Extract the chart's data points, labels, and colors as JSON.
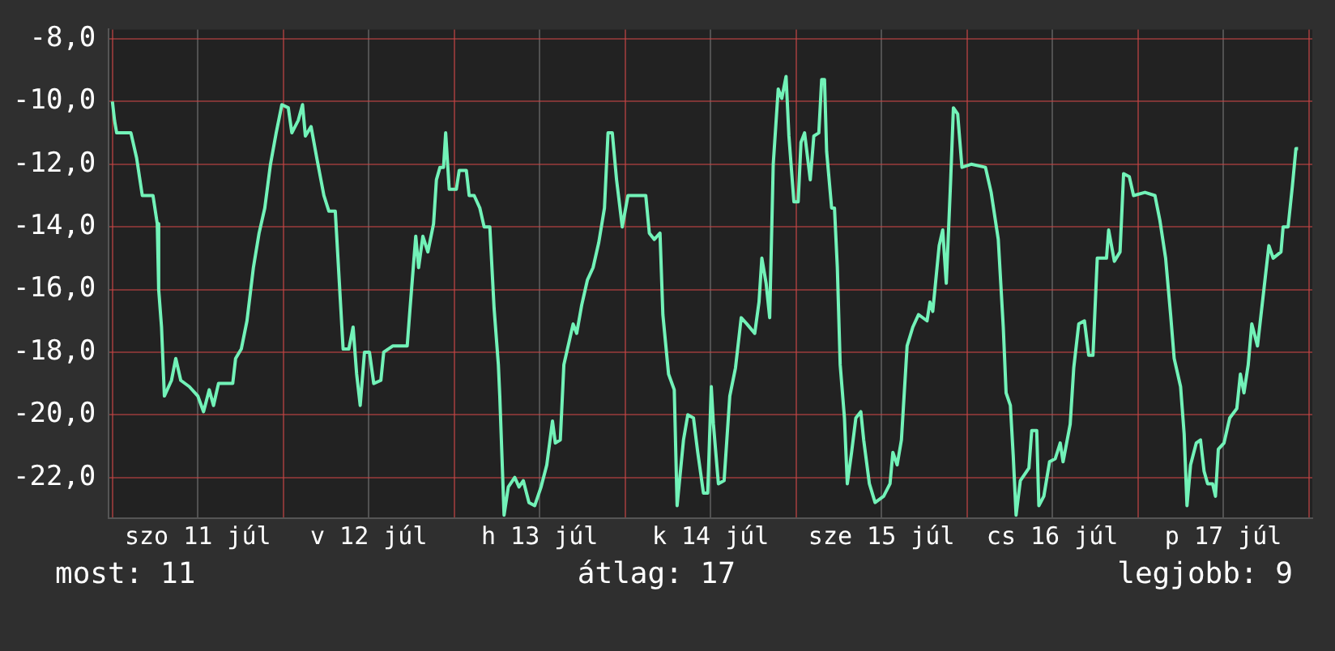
{
  "chart_data": {
    "type": "line",
    "color": "#72f2b8",
    "grid": true,
    "marker": "none",
    "line_style": "solid",
    "legend": false,
    "xlim": [
      "--07-10T23:30",
      "--07-18T00:30"
    ],
    "ylim": [
      -23.3,
      -7.7
    ],
    "xticks": [
      {
        "value": "--07-11T00:00",
        "label": null
      },
      {
        "value": "--07-11T12:00",
        "label": "szo 11 júl"
      },
      {
        "value": "--07-12T00:00",
        "label": null
      },
      {
        "value": "--07-12T12:00",
        "label": "v 12 júl"
      },
      {
        "value": "--07-13T00:00",
        "label": null
      },
      {
        "value": "--07-13T12:00",
        "label": "h 13 júl"
      },
      {
        "value": "--07-14T00:00",
        "label": null
      },
      {
        "value": "--07-14T12:00",
        "label": "k 14 júl"
      },
      {
        "value": "--07-15T00:00",
        "label": null
      },
      {
        "value": "--07-15T12:00",
        "label": "sze 15 júl"
      },
      {
        "value": "--07-16T00:00",
        "label": null
      },
      {
        "value": "--07-16T12:00",
        "label": "cs 16 júl"
      },
      {
        "value": "--07-17T00:00",
        "label": null
      },
      {
        "value": "--07-17T12:00",
        "label": "p 17 júl"
      },
      {
        "value": "--07-18T00:00",
        "label": null
      }
    ],
    "yticks": [
      {
        "value": -8,
        "label": "-8,0"
      },
      {
        "value": -10,
        "label": "-10,0"
      },
      {
        "value": -12,
        "label": "-12,0"
      },
      {
        "value": -14,
        "label": "-14,0"
      },
      {
        "value": -16,
        "label": "-16,0"
      },
      {
        "value": -18,
        "label": "-18,0"
      },
      {
        "value": -20,
        "label": "-20,0"
      },
      {
        "value": -22,
        "label": "-22,0"
      }
    ],
    "x": [
      "--07-11T00:00",
      "--07-11T00:18",
      "--07-11T00:36",
      "--07-11T02:36",
      "--07-11T03:24",
      "--07-11T04:12",
      "--07-11T05:42",
      "--07-11T06:18",
      "--07-11T06:30",
      "--07-11T06:54",
      "--07-11T07:18",
      "--07-11T08:18",
      "--07-11T08:54",
      "--07-11T09:36",
      "--07-11T10:48",
      "--07-11T12:00",
      "--07-11T12:48",
      "--07-11T13:36",
      "--07-11T14:12",
      "--07-11T14:54",
      "--07-11T16:54",
      "--07-11T17:18",
      "--07-11T18:06",
      "--07-11T18:54",
      "--07-11T19:48",
      "--07-11T20:36",
      "--07-11T21:24",
      "--07-11T22:12",
      "--07-11T23:00",
      "--07-11T23:48",
      "--07-12T00:42",
      "--07-12T01:12",
      "--07-12T02:06",
      "--07-12T02:42",
      "--07-12T03:06",
      "--07-12T03:54",
      "--07-12T04:42",
      "--07-12T05:42",
      "--07-12T06:24",
      "--07-12T07:18",
      "--07-12T08:00",
      "--07-12T08:24",
      "--07-12T09:12",
      "--07-12T09:48",
      "--07-12T10:18",
      "--07-12T10:48",
      "--07-12T11:24",
      "--07-12T12:06",
      "--07-12T12:42",
      "--07-12T13:42",
      "--07-12T14:06",
      "--07-12T15:24",
      "--07-12T17:24",
      "--07-12T17:48",
      "--07-12T18:36",
      "--07-12T19:00",
      "--07-12T19:36",
      "--07-12T20:18",
      "--07-12T21:06",
      "--07-12T21:30",
      "--07-12T22:00",
      "--07-12T22:30",
      "--07-12T22:48",
      "--07-12T23:18",
      "--07-13T00:18",
      "--07-13T00:42",
      "--07-13T01:42",
      "--07-13T02:06",
      "--07-13T02:48",
      "--07-13T03:36",
      "--07-13T04:12",
      "--07-13T05:00",
      "--07-13T05:36",
      "--07-13T06:12",
      "--07-13T06:24",
      "--07-13T07:00",
      "--07-13T07:36",
      "--07-13T08:30",
      "--07-13T09:06",
      "--07-13T09:42",
      "--07-13T10:30",
      "--07-13T11:18",
      "--07-13T12:12",
      "--07-13T13:00",
      "--07-13T13:48",
      "--07-13T14:12",
      "--07-13T14:54",
      "--07-13T15:24",
      "--07-13T16:12",
      "--07-13T16:42",
      "--07-13T17:12",
      "--07-13T17:54",
      "--07-13T18:42",
      "--07-13T19:30",
      "--07-13T20:18",
      "--07-13T21:06",
      "--07-13T21:36",
      "--07-13T22:12",
      "--07-13T22:48",
      "--07-13T23:36",
      "--07-14T00:24",
      "--07-14T02:54",
      "--07-14T03:24",
      "--07-14T04:06",
      "--07-14T04:54",
      "--07-14T05:18",
      "--07-14T06:06",
      "--07-14T06:54",
      "--07-14T07:18",
      "--07-14T08:12",
      "--07-14T08:48",
      "--07-14T09:36",
      "--07-14T10:12",
      "--07-14T11:00",
      "--07-14T11:36",
      "--07-14T12:06",
      "--07-14T12:24",
      "--07-14T13:06",
      "--07-14T13:54",
      "--07-14T14:42",
      "--07-14T15:30",
      "--07-14T16:18",
      "--07-14T17:06",
      "--07-14T18:12",
      "--07-14T18:48",
      "--07-14T19:12",
      "--07-14T19:48",
      "--07-14T20:18",
      "--07-14T20:48",
      "--07-14T21:30",
      "--07-14T22:00",
      "--07-14T22:36",
      "--07-14T23:00",
      "--07-14T23:42",
      "--07-15T00:18",
      "--07-15T00:42",
      "--07-15T01:12",
      "--07-15T02:00",
      "--07-15T02:30",
      "--07-15T03:12",
      "--07-15T03:36",
      "--07-15T04:00",
      "--07-15T04:18",
      "--07-15T05:00",
      "--07-15T05:24",
      "--07-15T05:48",
      "--07-15T06:12",
      "--07-15T06:48",
      "--07-15T07:12",
      "--07-15T07:48",
      "--07-15T08:24",
      "--07-15T09:06",
      "--07-15T09:30",
      "--07-15T10:18",
      "--07-15T11:06",
      "--07-15T12:18",
      "--07-15T13:12",
      "--07-15T13:36",
      "--07-15T14:12",
      "--07-15T14:48",
      "--07-15T15:36",
      "--07-15T16:24",
      "--07-15T17:12",
      "--07-15T18:24",
      "--07-15T18:48",
      "--07-15T19:12",
      "--07-15T20:06",
      "--07-15T20:36",
      "--07-15T21:06",
      "--07-15T21:42",
      "--07-15T22:06",
      "--07-15T22:42",
      "--07-15T23:18",
      "--07-16T00:36",
      "--07-16T02:36",
      "--07-16T03:24",
      "--07-16T04:24",
      "--07-16T05:06",
      "--07-16T05:30",
      "--07-16T06:06",
      "--07-16T06:30",
      "--07-16T06:54",
      "--07-16T07:30",
      "--07-16T08:42",
      "--07-16T09:06",
      "--07-16T09:48",
      "--07-16T10:06",
      "--07-16T10:48",
      "--07-16T11:36",
      "--07-16T12:24",
      "--07-16T13:06",
      "--07-16T13:30",
      "--07-16T14:30",
      "--07-16T15:00",
      "--07-16T15:42",
      "--07-16T16:30",
      "--07-16T17:06",
      "--07-16T17:42",
      "--07-16T18:18",
      "--07-16T19:36",
      "--07-16T19:54",
      "--07-16T20:42",
      "--07-16T21:30",
      "--07-16T22:00",
      "--07-16T22:48",
      "--07-16T23:24",
      "--07-17T01:00",
      "--07-17T02:24",
      "--07-17T03:06",
      "--07-17T03:54",
      "--07-17T04:36",
      "--07-17T05:06",
      "--07-17T06:00",
      "--07-17T06:30",
      "--07-17T06:54",
      "--07-17T07:24",
      "--07-17T08:12",
      "--07-17T08:48",
      "--07-17T09:18",
      "--07-17T09:48",
      "--07-17T10:30",
      "--07-17T10:54",
      "--07-17T11:18",
      "--07-17T12:06",
      "--07-17T12:54",
      "--07-17T13:54",
      "--07-17T14:24",
      "--07-17T14:54",
      "--07-17T15:30",
      "--07-17T16:00",
      "--07-17T16:48",
      "--07-17T17:54",
      "--07-17T18:24",
      "--07-17T19:00",
      "--07-17T20:06",
      "--07-17T20:24",
      "--07-17T21:06",
      "--07-17T21:42",
      "--07-17T22:12",
      "--07-17T22:30"
    ],
    "values": [
      -10.0,
      -10.6,
      -11.0,
      -11.0,
      -11.8,
      -13.0,
      -13.0,
      -13.9,
      -16.0,
      -17.2,
      -19.4,
      -18.9,
      -18.2,
      -18.9,
      -19.1,
      -19.4,
      -19.9,
      -19.2,
      -19.7,
      -19.0,
      -19.0,
      -18.2,
      -17.9,
      -17.0,
      -15.3,
      -14.2,
      -13.4,
      -12.0,
      -11.0,
      -10.1,
      -10.2,
      -11.0,
      -10.6,
      -10.1,
      -11.1,
      -10.8,
      -11.8,
      -13.0,
      -13.5,
      -13.5,
      -16.3,
      -17.9,
      -17.9,
      -17.2,
      -18.7,
      -19.7,
      -18.0,
      -18.0,
      -19.0,
      -18.9,
      -18.0,
      -17.8,
      -17.8,
      -16.6,
      -14.3,
      -15.3,
      -14.3,
      -14.8,
      -13.9,
      -12.5,
      -12.1,
      -12.1,
      -11.0,
      -12.8,
      -12.8,
      -12.2,
      -12.2,
      -13.0,
      -13.0,
      -13.4,
      -14.0,
      -14.0,
      -16.6,
      -18.4,
      -19.4,
      -23.2,
      -22.3,
      -22.0,
      -22.3,
      -22.1,
      -22.8,
      -22.9,
      -22.3,
      -21.6,
      -20.2,
      -20.9,
      -20.8,
      -18.4,
      -17.6,
      -17.1,
      -17.4,
      -16.5,
      -15.7,
      -15.3,
      -14.5,
      -13.4,
      -11.0,
      -11.0,
      -12.5,
      -14.0,
      -13.0,
      -13.0,
      -14.2,
      -14.4,
      -14.2,
      -16.8,
      -18.7,
      -19.2,
      -22.9,
      -20.8,
      -20.0,
      -20.1,
      -21.2,
      -22.5,
      -22.5,
      -19.1,
      -20.3,
      -22.2,
      -22.1,
      -19.4,
      -18.5,
      -16.9,
      -17.1,
      -17.4,
      -16.4,
      -15.0,
      -15.8,
      -16.9,
      -12.0,
      -9.6,
      -9.9,
      -9.2,
      -11.1,
      -13.2,
      -13.2,
      -11.3,
      -11.0,
      -12.5,
      -11.1,
      -11.0,
      -9.3,
      -9.3,
      -11.6,
      -13.4,
      -13.4,
      -15.3,
      -18.4,
      -20.1,
      -22.2,
      -21.2,
      -20.1,
      -19.9,
      -20.8,
      -22.2,
      -22.8,
      -22.6,
      -22.2,
      -21.2,
      -21.6,
      -20.8,
      -17.8,
      -17.2,
      -16.8,
      -17.0,
      -16.4,
      -16.7,
      -14.6,
      -14.1,
      -15.8,
      -12.6,
      -10.2,
      -10.4,
      -12.1,
      -12.0,
      -12.1,
      -12.9,
      -14.4,
      -17.2,
      -19.3,
      -19.7,
      -21.3,
      -23.2,
      -22.1,
      -21.7,
      -20.5,
      -20.5,
      -22.9,
      -22.6,
      -21.5,
      -21.4,
      -20.9,
      -21.5,
      -20.3,
      -18.5,
      -17.1,
      -17.0,
      -18.1,
      -18.1,
      -15.0,
      -15.0,
      -14.1,
      -15.1,
      -14.8,
      -12.3,
      -12.4,
      -13.0,
      -12.9,
      -13.0,
      -13.8,
      -15.0,
      -16.8,
      -18.2,
      -19.1,
      -20.6,
      -22.9,
      -21.6,
      -20.9,
      -20.8,
      -21.8,
      -22.2,
      -22.2,
      -22.6,
      -21.1,
      -20.9,
      -20.1,
      -19.8,
      -18.7,
      -19.3,
      -18.4,
      -17.1,
      -17.8,
      -15.6,
      -14.6,
      -15.0,
      -14.8,
      -14.0,
      -14.0,
      -12.7,
      -11.5,
      -11.5
    ],
    "annotations": [
      "most: 11",
      "átlag: 17",
      "legjobb: 9"
    ]
  }
}
